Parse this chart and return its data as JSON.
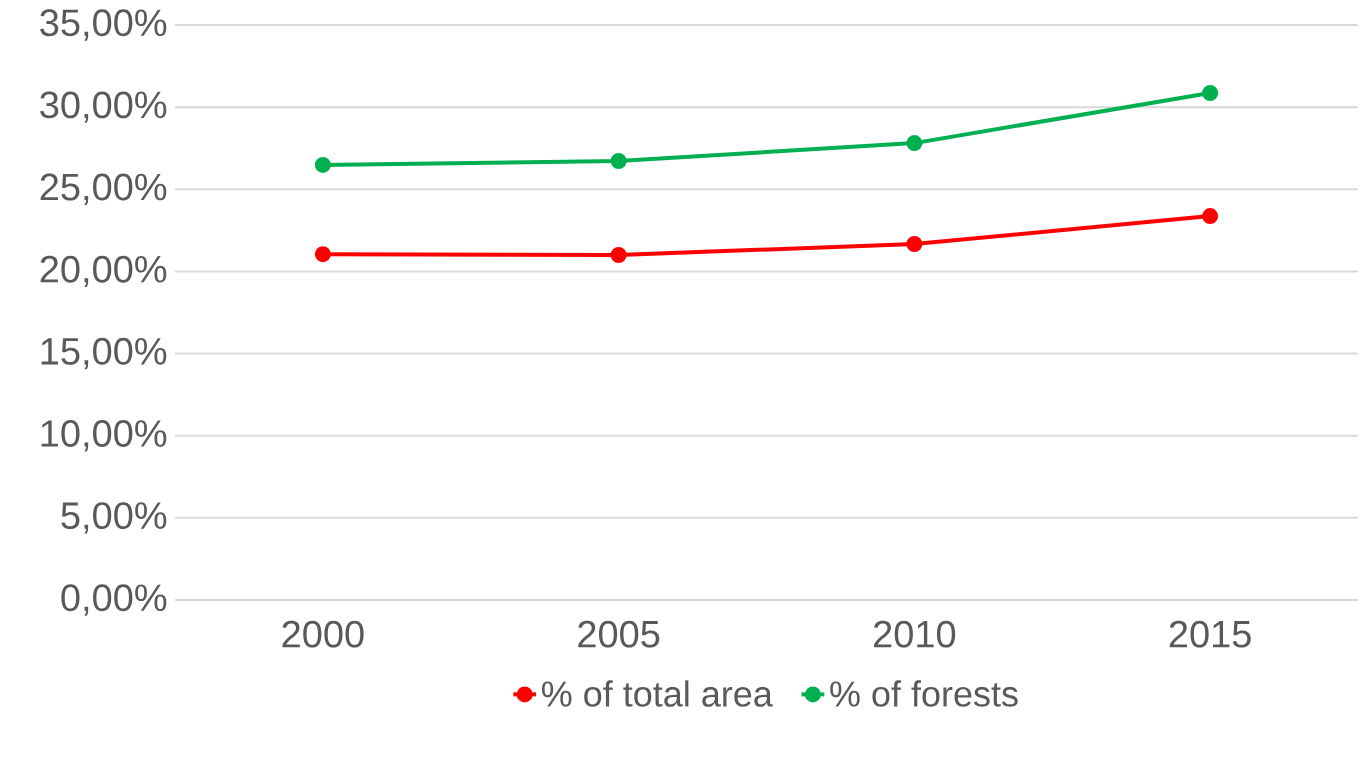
{
  "chart_data": {
    "type": "line",
    "categories": [
      "2000",
      "2005",
      "2010",
      "2015"
    ],
    "series": [
      {
        "name": "% of total area",
        "color": "#ff0000",
        "values": [
          21.05,
          21.0,
          21.67,
          23.37
        ]
      },
      {
        "name": "% of forests",
        "color": "#00b050",
        "values": [
          26.48,
          26.72,
          27.81,
          30.86
        ]
      }
    ],
    "ylim": [
      0,
      35
    ],
    "yticks": [
      {
        "value": 0,
        "label": "0,00%"
      },
      {
        "value": 5,
        "label": "5,00%"
      },
      {
        "value": 10,
        "label": "10,00%"
      },
      {
        "value": 15,
        "label": "15,00%"
      },
      {
        "value": 20,
        "label": "20,00%"
      },
      {
        "value": 25,
        "label": "25,00%"
      },
      {
        "value": 30,
        "label": "30,00%"
      },
      {
        "value": 35,
        "label": "35,00%"
      }
    ],
    "grid": "y",
    "legend": "bottom",
    "marker": "circle",
    "line_style": "solid"
  }
}
